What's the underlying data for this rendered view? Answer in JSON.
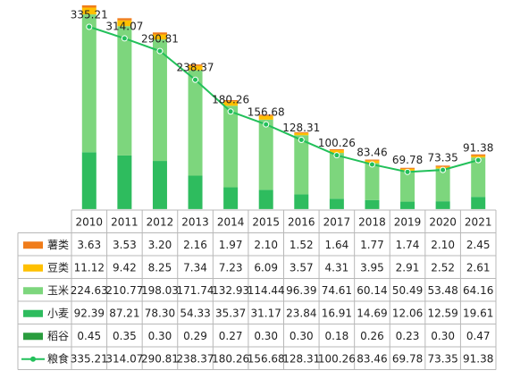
{
  "chart_data": {
    "type": "bar",
    "stacked": true,
    "categories": [
      "2010",
      "2011",
      "2012",
      "2013",
      "2014",
      "2015",
      "2016",
      "2017",
      "2018",
      "2019",
      "2020",
      "2021"
    ],
    "series": [
      {
        "name": "稻谷",
        "color": "#2a9d3e",
        "values": [
          0.45,
          0.35,
          0.3,
          0.29,
          0.27,
          0.3,
          0.3,
          0.18,
          0.26,
          0.23,
          0.3,
          0.47
        ],
        "value_labels": [
          "0.45",
          "0.35",
          "0.30",
          "0.29",
          "0.27",
          "0.30",
          "0.30",
          "0.18",
          "0.26",
          "0.23",
          "0.30",
          "0.47"
        ]
      },
      {
        "name": "小麦",
        "color": "#2ebc5e",
        "values": [
          92.39,
          87.21,
          78.3,
          54.33,
          35.37,
          31.17,
          23.84,
          16.91,
          14.69,
          12.06,
          12.59,
          19.61
        ],
        "value_labels": [
          "92.39",
          "87.21",
          "78.30",
          "54.33",
          "35.37",
          "31.17",
          "23.84",
          "16.91",
          "14.69",
          "12.06",
          "12.59",
          "19.61"
        ]
      },
      {
        "name": "玉米",
        "color": "#7dd67d",
        "values": [
          224.63,
          210.77,
          198.03,
          171.74,
          132.93,
          114.44,
          96.39,
          74.61,
          60.14,
          50.49,
          53.48,
          64.16
        ],
        "value_labels": [
          "224.63",
          "210.77",
          "198.03",
          "171.74",
          "132.93",
          "114.44",
          "96.39",
          "74.61",
          "60.14",
          "50.49",
          "53.48",
          "64.16"
        ]
      },
      {
        "name": "豆类",
        "color": "#ffc000",
        "values": [
          11.12,
          9.42,
          8.25,
          7.34,
          7.23,
          6.09,
          3.57,
          4.31,
          3.95,
          2.91,
          2.52,
          2.61
        ],
        "value_labels": [
          "11.12",
          "9.42",
          "8.25",
          "7.34",
          "7.23",
          "6.09",
          "3.57",
          "4.31",
          "3.95",
          "2.91",
          "2.52",
          "2.61"
        ]
      },
      {
        "name": "薯类",
        "color": "#f07c1a",
        "values": [
          3.63,
          3.53,
          3.2,
          2.16,
          1.97,
          2.1,
          1.52,
          1.64,
          1.77,
          1.74,
          2.1,
          2.45
        ],
        "value_labels": [
          "3.63",
          "3.53",
          "3.20",
          "2.16",
          "1.97",
          "2.10",
          "1.52",
          "1.64",
          "1.77",
          "1.74",
          "2.10",
          "2.45"
        ]
      },
      {
        "name": "粮食",
        "type": "line",
        "color": "#22c05a",
        "values": [
          335.21,
          314.07,
          290.81,
          238.37,
          180.26,
          156.68,
          128.31,
          100.26,
          83.46,
          69.78,
          73.35,
          91.38
        ]
      }
    ]
  }
}
